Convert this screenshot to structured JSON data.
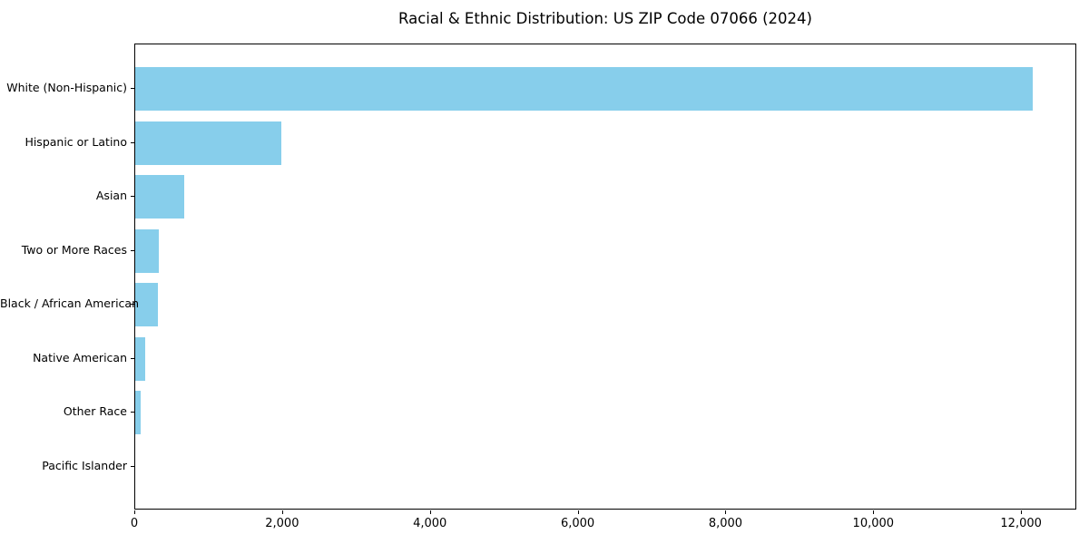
{
  "chart_data": {
    "type": "bar",
    "orientation": "horizontal",
    "title": "Racial & Ethnic Distribution: US ZIP Code 07066 (2024)",
    "xlabel": "",
    "ylabel": "",
    "categories": [
      "White (Non-Hispanic)",
      "Hispanic or Latino",
      "Asian",
      "Two or More Races",
      "Black / African American",
      "Native American",
      "Other Race",
      "Pacific Islander"
    ],
    "values": [
      12140,
      1975,
      660,
      320,
      305,
      140,
      70,
      0
    ],
    "xlim": [
      0,
      12747
    ],
    "xticks": [
      0,
      2000,
      4000,
      6000,
      8000,
      10000,
      12000
    ],
    "xtick_labels": [
      "0",
      "2,000",
      "4,000",
      "6,000",
      "8,000",
      "10,000",
      "12,000"
    ],
    "bar_color": "#87CEEB",
    "background_color": "#ffffff",
    "axis_color": "#000000",
    "grid": false,
    "legend": null
  }
}
